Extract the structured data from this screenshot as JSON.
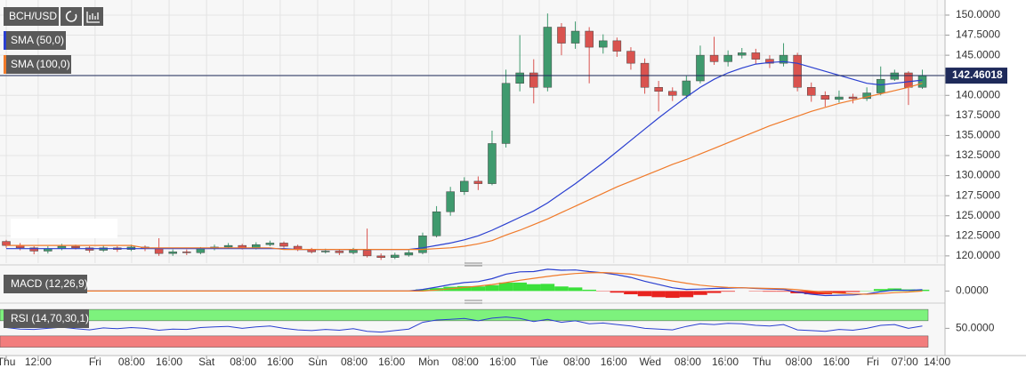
{
  "chart_data": [
    {
      "type": "candlestick",
      "symbol": "BCH/USD",
      "grid": true,
      "up_color": "#3f9a6e",
      "down_color": "#d9534f",
      "xlim": [
        -1.35,
        202.9
      ],
      "ylim": [
        119.1,
        151.88
      ],
      "xticks": [
        {
          "value": 0,
          "label": "Thu"
        },
        {
          "value": 6.9,
          "label": "12:00"
        },
        {
          "value": 19.2,
          "label": "Fri"
        },
        {
          "value": 27.1,
          "label": "08:00"
        },
        {
          "value": 35.2,
          "label": "16:00"
        },
        {
          "value": 43.3,
          "label": "Sat"
        },
        {
          "value": 51.2,
          "label": "08:00"
        },
        {
          "value": 59.2,
          "label": "16:00"
        },
        {
          "value": 67.3,
          "label": "Sun"
        },
        {
          "value": 75.2,
          "label": "08:00"
        },
        {
          "value": 83.3,
          "label": "16:00"
        },
        {
          "value": 91.3,
          "label": "Mon"
        },
        {
          "value": 99.2,
          "label": "08:00"
        },
        {
          "value": 107.3,
          "label": "16:00"
        },
        {
          "value": 115.2,
          "label": "Tue"
        },
        {
          "value": 123.3,
          "label": "08:00"
        },
        {
          "value": 131.3,
          "label": "16:00"
        },
        {
          "value": 139.2,
          "label": "Wed"
        },
        {
          "value": 147.3,
          "label": "08:00"
        },
        {
          "value": 155.4,
          "label": "16:00"
        },
        {
          "value": 163.3,
          "label": "Thu"
        },
        {
          "value": 171.3,
          "label": "08:00"
        },
        {
          "value": 179.4,
          "label": "16:00"
        },
        {
          "value": 187.3,
          "label": "Fri"
        },
        {
          "value": 194.2,
          "label": "07:00"
        },
        {
          "value": 201.2,
          "label": "14:00"
        }
      ],
      "yticks": [
        {
          "value": 150,
          "label": "150.0000"
        },
        {
          "value": 147.5,
          "label": "147.5000"
        },
        {
          "value": 145,
          "label": "145.0000"
        },
        {
          "value": 142.5,
          "label": "142.5000"
        },
        {
          "value": 140,
          "label": "140.0000"
        },
        {
          "value": 137.5,
          "label": "137.5000"
        },
        {
          "value": 135,
          "label": "135.0000"
        },
        {
          "value": 132.5,
          "label": "132.5000"
        },
        {
          "value": 130,
          "label": "130.0000"
        },
        {
          "value": 127.5,
          "label": "127.5000"
        },
        {
          "value": 125,
          "label": "125.0000"
        },
        {
          "value": 122.5,
          "label": "122.5000"
        },
        {
          "value": 120,
          "label": "120.0000"
        }
      ],
      "last_price": 142.46018,
      "x": [
        0,
        3,
        6,
        9,
        12,
        15,
        18,
        21,
        24,
        27,
        30,
        33,
        36,
        39,
        42,
        45,
        48,
        51,
        54,
        57,
        60,
        63,
        66,
        69,
        72,
        75,
        78,
        81,
        84,
        87,
        90,
        93,
        96,
        99,
        102,
        105,
        108,
        111,
        114,
        117,
        120,
        123,
        126,
        129,
        132,
        135,
        138,
        141,
        144,
        147,
        150,
        153,
        156,
        159,
        162,
        165,
        168,
        171,
        174,
        177,
        180,
        183,
        186,
        189,
        192,
        195,
        198
      ],
      "candles": [
        [
          121.8,
          122.0,
          121.0,
          121.3
        ],
        [
          121.3,
          121.6,
          120.7,
          121.0
        ],
        [
          121.0,
          121.2,
          120.2,
          120.6
        ],
        [
          120.6,
          121.2,
          120.3,
          120.9
        ],
        [
          120.9,
          121.5,
          120.7,
          121.2
        ],
        [
          121.2,
          121.4,
          120.8,
          121.0
        ],
        [
          121.0,
          121.2,
          120.4,
          120.7
        ],
        [
          120.7,
          121.3,
          120.5,
          121.0
        ],
        [
          121.0,
          121.2,
          120.5,
          120.8
        ],
        [
          120.8,
          121.4,
          120.6,
          121.1
        ],
        [
          121.1,
          121.3,
          120.6,
          120.9
        ],
        [
          120.9,
          122.2,
          120.0,
          120.3
        ],
        [
          120.3,
          120.8,
          120.0,
          120.5
        ],
        [
          120.5,
          120.8,
          120.1,
          120.4
        ],
        [
          120.4,
          121.1,
          120.2,
          120.9
        ],
        [
          120.9,
          121.4,
          120.7,
          121.1
        ],
        [
          121.1,
          121.6,
          120.9,
          121.3
        ],
        [
          121.3,
          121.5,
          120.8,
          121.0
        ],
        [
          121.0,
          121.7,
          120.8,
          121.4
        ],
        [
          121.4,
          121.9,
          121.2,
          121.6
        ],
        [
          121.6,
          121.8,
          121.0,
          121.2
        ],
        [
          121.2,
          121.4,
          120.6,
          120.8
        ],
        [
          120.8,
          121.0,
          120.3,
          120.5
        ],
        [
          120.5,
          120.9,
          120.3,
          120.6
        ],
        [
          120.6,
          120.8,
          120.1,
          120.4
        ],
        [
          120.4,
          121.0,
          120.2,
          120.7
        ],
        [
          120.7,
          123.4,
          119.8,
          120.0
        ],
        [
          120.0,
          120.3,
          119.5,
          119.8
        ],
        [
          119.8,
          120.4,
          119.6,
          120.1
        ],
        [
          120.1,
          120.7,
          119.9,
          120.4
        ],
        [
          120.4,
          122.9,
          120.2,
          122.5
        ],
        [
          122.5,
          126.2,
          122.3,
          125.5
        ],
        [
          125.5,
          128.6,
          125.0,
          128.0
        ],
        [
          128.0,
          129.8,
          127.6,
          129.3
        ],
        [
          129.3,
          129.9,
          128.2,
          129.0
        ],
        [
          129.0,
          135.6,
          128.8,
          134.0
        ],
        [
          134.0,
          143.2,
          133.5,
          141.5
        ],
        [
          141.5,
          147.5,
          140.5,
          142.8
        ],
        [
          142.8,
          144.5,
          139.0,
          141.0
        ],
        [
          141.0,
          150.2,
          140.5,
          148.5
        ],
        [
          148.5,
          149.0,
          145.0,
          146.5
        ],
        [
          146.5,
          149.2,
          145.8,
          148.0
        ],
        [
          148.0,
          148.5,
          141.5,
          146.0
        ],
        [
          146.0,
          147.6,
          145.2,
          146.8
        ],
        [
          146.8,
          147.2,
          144.8,
          145.5
        ],
        [
          145.5,
          146.0,
          143.2,
          144.0
        ],
        [
          144.0,
          144.6,
          140.2,
          141.0
        ],
        [
          141.0,
          141.8,
          138.0,
          140.5
        ],
        [
          140.5,
          141.0,
          139.3,
          140.0
        ],
        [
          140.0,
          142.4,
          139.6,
          141.8
        ],
        [
          141.8,
          146.2,
          141.5,
          145.0
        ],
        [
          145.0,
          147.3,
          143.8,
          144.2
        ],
        [
          144.2,
          145.6,
          143.6,
          145.0
        ],
        [
          145.0,
          145.9,
          144.6,
          145.3
        ],
        [
          145.3,
          145.8,
          143.9,
          144.5
        ],
        [
          144.5,
          145.0,
          143.4,
          144.0
        ],
        [
          144.0,
          146.5,
          143.6,
          145.0
        ],
        [
          145.0,
          145.3,
          140.5,
          141.0
        ],
        [
          141.0,
          141.6,
          139.2,
          140.0
        ],
        [
          140.0,
          140.5,
          138.6,
          139.5
        ],
        [
          139.5,
          140.6,
          139.1,
          139.8
        ],
        [
          139.8,
          140.2,
          139.0,
          139.6
        ],
        [
          139.6,
          141.0,
          139.3,
          140.3
        ],
        [
          140.3,
          143.6,
          140.0,
          142.0
        ],
        [
          142.0,
          143.2,
          141.8,
          142.8
        ],
        [
          142.8,
          143.0,
          138.8,
          141.0
        ],
        [
          141.0,
          143.2,
          140.8,
          142.46
        ]
      ],
      "series": [
        {
          "name": "SMA (50,0)",
          "color": "#2a3fd0",
          "values": [
            120.9,
            120.9,
            120.9,
            120.9,
            120.9,
            120.9,
            120.9,
            120.9,
            120.9,
            120.9,
            120.9,
            120.9,
            120.9,
            120.9,
            120.9,
            120.9,
            120.9,
            120.9,
            120.9,
            120.9,
            120.9,
            120.8,
            120.8,
            120.8,
            120.8,
            120.8,
            120.8,
            120.8,
            120.8,
            120.8,
            121.0,
            121.3,
            121.6,
            122.0,
            122.5,
            123.2,
            124.0,
            124.8,
            125.6,
            126.6,
            127.8,
            129.0,
            130.3,
            131.6,
            133.0,
            134.4,
            135.8,
            137.2,
            138.5,
            139.8,
            141.0,
            142.0,
            142.8,
            143.4,
            143.9,
            144.1,
            144.2,
            144.0,
            143.5,
            143.0,
            142.5,
            142.0,
            141.5,
            141.3,
            141.5,
            141.7,
            141.9
          ]
        },
        {
          "name": "SMA (100,0)",
          "color": "#f07a2a",
          "values": [
            121.3,
            121.3,
            121.3,
            121.3,
            121.3,
            121.3,
            121.3,
            121.3,
            121.3,
            121.3,
            121.0,
            121.0,
            121.0,
            121.0,
            121.0,
            121.0,
            121.0,
            121.0,
            121.0,
            121.0,
            120.8,
            120.8,
            120.8,
            120.8,
            120.8,
            120.8,
            120.8,
            120.8,
            120.8,
            120.8,
            120.8,
            120.9,
            121.0,
            121.2,
            121.5,
            121.9,
            122.6,
            123.2,
            123.9,
            124.6,
            125.4,
            126.2,
            127.0,
            127.8,
            128.6,
            129.3,
            130.0,
            130.7,
            131.4,
            132.0,
            132.7,
            133.4,
            134.1,
            134.8,
            135.5,
            136.2,
            136.8,
            137.4,
            138.0,
            138.5,
            139.0,
            139.4,
            139.8,
            140.2,
            140.6,
            141.0,
            141.5
          ]
        }
      ]
    },
    {
      "type": "macd",
      "label": "MACD (12,26,9)",
      "ylim": [
        -4,
        7.5
      ],
      "yticks": [
        {
          "value": 0,
          "label": "0.0000"
        }
      ],
      "histogram": {
        "up_color": "#3be03b",
        "down_color": "#e8231f",
        "values": [
          0,
          0,
          0,
          0,
          0,
          0,
          0,
          0,
          0,
          0,
          0,
          0,
          0,
          0,
          0,
          0,
          0,
          0,
          0,
          0,
          0,
          0,
          0,
          0,
          0,
          0,
          0,
          0,
          0,
          0,
          0.5,
          0.9,
          1.3,
          1.5,
          1.4,
          1.8,
          2.6,
          2.6,
          2.1,
          2.2,
          1.4,
          1.1,
          0.4,
          -0.1,
          -0.5,
          -1.0,
          -1.6,
          -1.9,
          -2.1,
          -1.9,
          -1.2,
          -0.6,
          -0.2,
          0,
          -0.1,
          -0.2,
          -0.2,
          -0.7,
          -1.0,
          -1.0,
          -0.6,
          -0.3,
          0.1,
          0.6,
          0.8,
          0.5,
          0.4
        ]
      },
      "series": [
        {
          "color": "#2a3fd0",
          "values": [
            0,
            0,
            0,
            0,
            0,
            0,
            0,
            0,
            0,
            0,
            0,
            0,
            0,
            0,
            0,
            0,
            0,
            0,
            0,
            0,
            0,
            0,
            0,
            0,
            0,
            0,
            0,
            0,
            0,
            0,
            0.5,
            1.2,
            2.0,
            2.6,
            2.9,
            3.8,
            5.2,
            5.9,
            6.0,
            6.7,
            6.4,
            6.5,
            6.0,
            5.6,
            5.0,
            4.2,
            3.0,
            2.0,
            1.0,
            0.5,
            0.6,
            0.8,
            0.9,
            1.0,
            0.8,
            0.6,
            0.5,
            -0.3,
            -1.0,
            -1.4,
            -1.3,
            -1.2,
            -0.9,
            -0.2,
            0.3,
            0.2,
            0.4
          ]
        },
        {
          "color": "#f07a2a",
          "values": [
            0,
            0,
            0,
            0,
            0,
            0,
            0,
            0,
            0,
            0,
            0,
            0,
            0,
            0,
            0,
            0,
            0,
            0,
            0,
            0,
            0,
            0,
            0,
            0,
            0,
            0,
            0,
            0,
            0,
            0,
            0,
            0.3,
            0.7,
            1.1,
            1.5,
            2.0,
            2.6,
            3.3,
            3.9,
            4.5,
            5.0,
            5.4,
            5.6,
            5.7,
            5.5,
            5.2,
            4.6,
            3.9,
            3.1,
            2.4,
            1.8,
            1.4,
            1.1,
            1.0,
            0.9,
            0.8,
            0.7,
            0.4,
            0,
            -0.4,
            -0.7,
            -0.9,
            -1.0,
            -0.8,
            -0.5,
            -0.3,
            0
          ]
        }
      ]
    },
    {
      "type": "line",
      "label": "RSI (14,70,30,1)",
      "ylim": [
        -22,
        112
      ],
      "yticks": [
        {
          "value": 50,
          "label": "50.0000"
        }
      ],
      "bands": [
        {
          "from": 70,
          "to": 100,
          "color": "#7df27d"
        },
        {
          "from": 0,
          "to": 30,
          "color": "#f27d7d"
        }
      ],
      "series": [
        {
          "color": "#2a3fd0",
          "values": [
            52,
            48,
            47,
            50,
            53,
            49,
            46,
            51,
            49,
            52,
            50,
            45,
            48,
            47,
            52,
            54,
            55,
            50,
            54,
            56,
            50,
            46,
            44,
            47,
            45,
            49,
            42,
            40,
            44,
            48,
            66,
            72,
            74,
            76,
            70,
            77,
            80,
            76,
            68,
            74,
            66,
            70,
            62,
            64,
            60,
            56,
            50,
            48,
            46,
            55,
            62,
            60,
            63,
            62,
            58,
            56,
            60,
            46,
            44,
            42,
            47,
            45,
            50,
            58,
            60,
            50,
            56
          ]
        }
      ]
    }
  ]
}
